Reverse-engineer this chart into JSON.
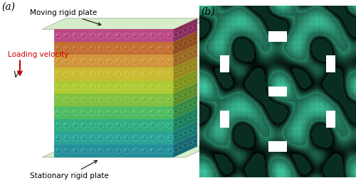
{
  "fig_width": 5.0,
  "fig_height": 2.58,
  "dpi": 100,
  "background_color": "#ffffff",
  "panel_a_label": "(a)",
  "panel_b_label": "(b)",
  "label_fontsize": 10,
  "annotation_fontsize": 7.5,
  "arrow_color": "#111111",
  "red_arrow_color": "#cc0000",
  "loading_velocity_text": "Loading velocity",
  "loading_velocity_color": "#cc0000",
  "v_text": "V",
  "moving_plate_text": "Moving rigid plate",
  "stationary_plate_text": "Stationary rigid plate",
  "plate_color": "#c8e8b8",
  "plate_alpha": 0.75,
  "lattice_colors": [
    "#1a8a96",
    "#1e9e90",
    "#22aa7a",
    "#44b85a",
    "#7abe38",
    "#aac828",
    "#c8b828",
    "#d09030",
    "#c06828",
    "#b84080"
  ],
  "mesh_bg_color": "#164a3a",
  "mesh_teal": "#3ec8a0",
  "mesh_light": "#70e0be",
  "mesh_dark": "#0a3028",
  "mesh_mid": "#2aaa82"
}
